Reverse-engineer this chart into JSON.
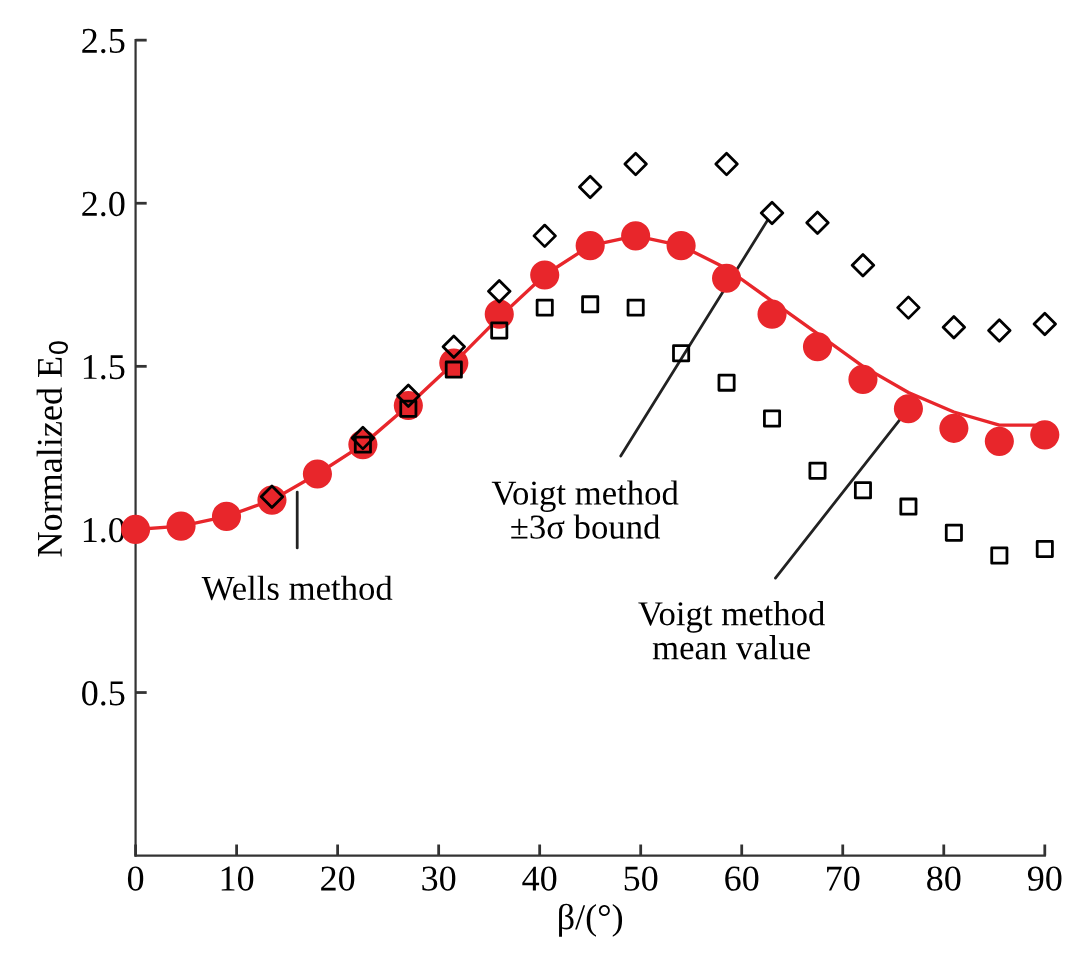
{
  "chart_data": {
    "type": "scatter",
    "xlabel": "β/(°)",
    "ylabel": "Normalized E$_{0}$",
    "xlim": [
      0,
      90
    ],
    "xticks": [
      0,
      10,
      20,
      30,
      40,
      50,
      60,
      70,
      80,
      90
    ],
    "ylim": [
      0,
      2.5
    ],
    "yticks": [
      {
        "value": 0.5,
        "label": "0.5"
      },
      {
        "value": 1,
        "label": "1.0"
      },
      {
        "value": 1.5,
        "label": "1.5"
      },
      {
        "value": 2,
        "label": "2.0"
      },
      {
        "value": 2.5,
        "label": "2.5"
      }
    ],
    "grid": false,
    "legend": false,
    "series": [
      {
        "type": "line",
        "color": "#e8262b",
        "marker": "none",
        "x": [
          0,
          4.5,
          9,
          13.5,
          18,
          22.5,
          27,
          31.5,
          36,
          40.5,
          45,
          49.5,
          54,
          58.5,
          63,
          67.5,
          72,
          76.5,
          81,
          85.5,
          90
        ],
        "values": [
          1.0,
          1.01,
          1.04,
          1.09,
          1.17,
          1.26,
          1.38,
          1.51,
          1.65,
          1.78,
          1.87,
          1.9,
          1.87,
          1.8,
          1.7,
          1.6,
          1.5,
          1.42,
          1.36,
          1.32,
          1.32
        ]
      },
      {
        "color": "#e8262b",
        "marker": "circle",
        "x": [
          0,
          4.5,
          9,
          13.5,
          18,
          22.5,
          27,
          31.5,
          36,
          40.5,
          45,
          49.5,
          54,
          58.5,
          63,
          67.5,
          72,
          76.5,
          81,
          85.5,
          90
        ],
        "values": [
          1.0,
          1.01,
          1.04,
          1.09,
          1.17,
          1.26,
          1.38,
          1.51,
          1.66,
          1.78,
          1.87,
          1.9,
          1.87,
          1.77,
          1.66,
          1.56,
          1.46,
          1.37,
          1.31,
          1.27,
          1.29
        ]
      },
      {
        "color": "#000000",
        "marker": "diamond",
        "x": [
          13.5,
          22.5,
          27,
          31.5,
          36,
          40.5,
          45,
          49.5,
          58.5,
          63,
          67.5,
          72,
          76.5,
          81,
          85.5,
          90
        ],
        "values": [
          1.1,
          1.28,
          1.41,
          1.56,
          1.73,
          1.9,
          2.05,
          2.12,
          2.12,
          1.97,
          1.94,
          1.81,
          1.68,
          1.62,
          1.61,
          1.63
        ]
      },
      {
        "color": "#000000",
        "marker": "square",
        "x": [
          22.5,
          27,
          31.5,
          36,
          40.5,
          45,
          49.5,
          54,
          58.5,
          63,
          67.5,
          72,
          76.5,
          81,
          85.5,
          90
        ],
        "values": [
          1.26,
          1.37,
          1.49,
          1.61,
          1.68,
          1.69,
          1.68,
          1.54,
          1.45,
          1.34,
          1.18,
          1.12,
          1.07,
          0.99,
          0.92,
          0.94
        ]
      }
    ],
    "annotations": [
      {
        "text": "Wells method",
        "x": 16,
        "y": 1.14
      },
      {
        "text": "Voigt method\n±3σ bound",
        "x": 63,
        "y": 1.97
      },
      {
        "text": "Voigt method\nmean value",
        "x": 76.5,
        "y": 1.37
      }
    ]
  }
}
